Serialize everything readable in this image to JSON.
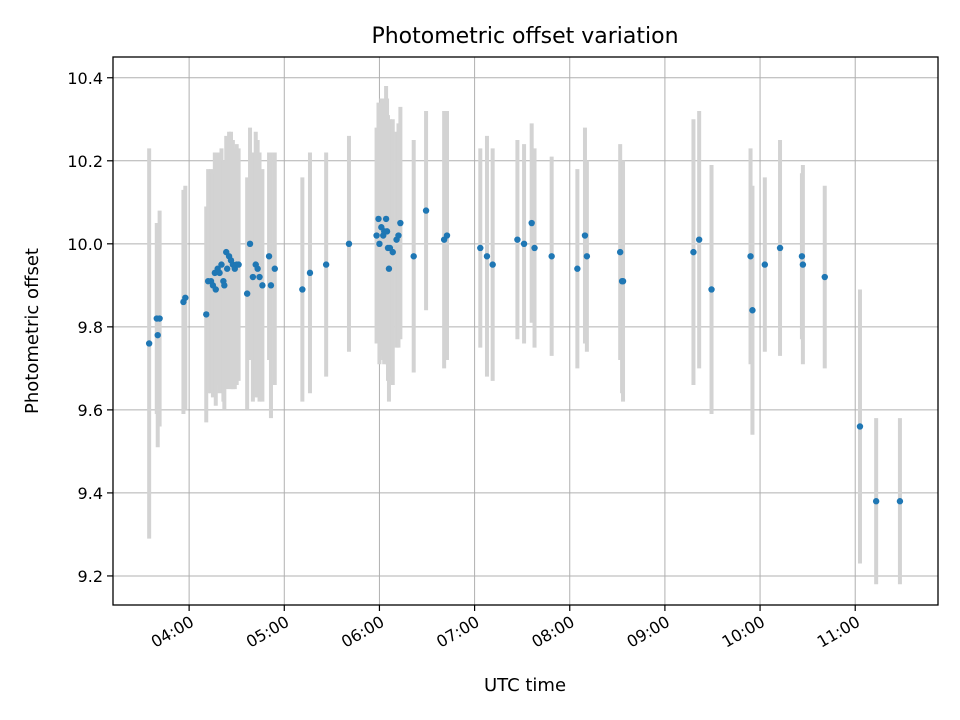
{
  "chart_data": {
    "type": "scatter",
    "title": "Photometric offset variation",
    "xlabel": "UTC time",
    "ylabel": "Photometric offset",
    "x_unit": "hours UTC",
    "xlim": [
      3.2,
      11.87
    ],
    "ylim": [
      9.13,
      10.45
    ],
    "xticks": [
      {
        "value": 4,
        "label": "04:00"
      },
      {
        "value": 5,
        "label": "05:00"
      },
      {
        "value": 6,
        "label": "06:00"
      },
      {
        "value": 7,
        "label": "07:00"
      },
      {
        "value": 8,
        "label": "08:00"
      },
      {
        "value": 9,
        "label": "09:00"
      },
      {
        "value": 10,
        "label": "10:00"
      },
      {
        "value": 11,
        "label": "11:00"
      }
    ],
    "yticks": [
      {
        "value": 9.2,
        "label": "9.2"
      },
      {
        "value": 9.4,
        "label": "9.4"
      },
      {
        "value": 9.6,
        "label": "9.6"
      },
      {
        "value": 9.8,
        "label": "9.8"
      },
      {
        "value": 10.0,
        "label": "10.0"
      },
      {
        "value": 10.2,
        "label": "10.2"
      },
      {
        "value": 10.4,
        "label": "10.4"
      }
    ],
    "grid": true,
    "colors": {
      "points": "#1f77b4",
      "errorbars": "#d3d3d3",
      "grid": "#b0b0b0"
    },
    "series": [
      {
        "points": [
          [
            3.58,
            9.76,
            0.47
          ],
          [
            3.66,
            9.82,
            0.23
          ],
          [
            3.67,
            9.78,
            0.27
          ],
          [
            3.69,
            9.82,
            0.26
          ],
          [
            3.94,
            9.86,
            0.27
          ],
          [
            3.96,
            9.87,
            0.27
          ],
          [
            4.18,
            9.83,
            0.26
          ],
          [
            4.2,
            9.91,
            0.27
          ],
          [
            4.23,
            9.91,
            0.27
          ],
          [
            4.25,
            9.9,
            0.27
          ],
          [
            4.27,
            9.93,
            0.29
          ],
          [
            4.28,
            9.89,
            0.28
          ],
          [
            4.3,
            9.94,
            0.28
          ],
          [
            4.32,
            9.93,
            0.29
          ],
          [
            4.34,
            9.95,
            0.28
          ],
          [
            4.36,
            9.91,
            0.29
          ],
          [
            4.37,
            9.9,
            0.3
          ],
          [
            4.39,
            9.98,
            0.28
          ],
          [
            4.4,
            9.94,
            0.29
          ],
          [
            4.42,
            9.97,
            0.3
          ],
          [
            4.44,
            9.96,
            0.31
          ],
          [
            4.46,
            9.95,
            0.3
          ],
          [
            4.48,
            9.94,
            0.29
          ],
          [
            4.5,
            9.95,
            0.29
          ],
          [
            4.52,
            9.95,
            0.28
          ],
          [
            4.61,
            9.88,
            0.28
          ],
          [
            4.64,
            10.0,
            0.28
          ],
          [
            4.67,
            9.92,
            0.3
          ],
          [
            4.7,
            9.95,
            0.32
          ],
          [
            4.72,
            9.94,
            0.31
          ],
          [
            4.74,
            9.92,
            0.3
          ],
          [
            4.77,
            9.9,
            0.28
          ],
          [
            4.84,
            9.97,
            0.25
          ],
          [
            4.86,
            9.9,
            0.32
          ],
          [
            4.9,
            9.94,
            0.28
          ],
          [
            5.19,
            9.89,
            0.27
          ],
          [
            5.27,
            9.93,
            0.29
          ],
          [
            5.44,
            9.95,
            0.27
          ],
          [
            5.68,
            10.0,
            0.26
          ],
          [
            5.97,
            10.02,
            0.26
          ],
          [
            5.99,
            10.06,
            0.28
          ],
          [
            6.0,
            10.0,
            0.29
          ],
          [
            6.02,
            10.04,
            0.31
          ],
          [
            6.04,
            10.02,
            0.3
          ],
          [
            6.05,
            10.03,
            0.32
          ],
          [
            6.07,
            10.06,
            0.32
          ],
          [
            6.08,
            10.03,
            0.32
          ],
          [
            6.09,
            9.99,
            0.32
          ],
          [
            6.1,
            9.94,
            0.32
          ],
          [
            6.11,
            9.99,
            0.31
          ],
          [
            6.14,
            9.98,
            0.32
          ],
          [
            6.18,
            10.01,
            0.26
          ],
          [
            6.2,
            10.02,
            0.27
          ],
          [
            6.22,
            10.05,
            0.28
          ],
          [
            6.36,
            9.97,
            0.28
          ],
          [
            6.49,
            10.08,
            0.24
          ],
          [
            6.68,
            10.01,
            0.31
          ],
          [
            6.71,
            10.02,
            0.3
          ],
          [
            7.06,
            9.99,
            0.24
          ],
          [
            7.13,
            9.97,
            0.29
          ],
          [
            7.19,
            9.95,
            0.28
          ],
          [
            7.45,
            10.01,
            0.24
          ],
          [
            7.52,
            10.0,
            0.24
          ],
          [
            7.6,
            10.05,
            0.24
          ],
          [
            7.63,
            9.99,
            0.24
          ],
          [
            7.81,
            9.97,
            0.24
          ],
          [
            8.08,
            9.94,
            0.24
          ],
          [
            8.16,
            10.02,
            0.26
          ],
          [
            8.18,
            9.97,
            0.23
          ],
          [
            8.53,
            9.98,
            0.26
          ],
          [
            8.55,
            9.91,
            0.27
          ],
          [
            8.56,
            9.91,
            0.29
          ],
          [
            9.3,
            9.98,
            0.32
          ],
          [
            9.36,
            10.01,
            0.31
          ],
          [
            9.49,
            9.89,
            0.3
          ],
          [
            9.9,
            9.97,
            0.26
          ],
          [
            9.92,
            9.84,
            0.3
          ],
          [
            10.05,
            9.95,
            0.21
          ],
          [
            10.21,
            9.99,
            0.26
          ],
          [
            10.44,
            9.97,
            0.2
          ],
          [
            10.45,
            9.95,
            0.24
          ],
          [
            10.68,
            9.92,
            0.22
          ],
          [
            11.05,
            9.56,
            0.33
          ],
          [
            11.22,
            9.38,
            0.2
          ],
          [
            11.47,
            9.38,
            0.2
          ]
        ]
      }
    ]
  }
}
